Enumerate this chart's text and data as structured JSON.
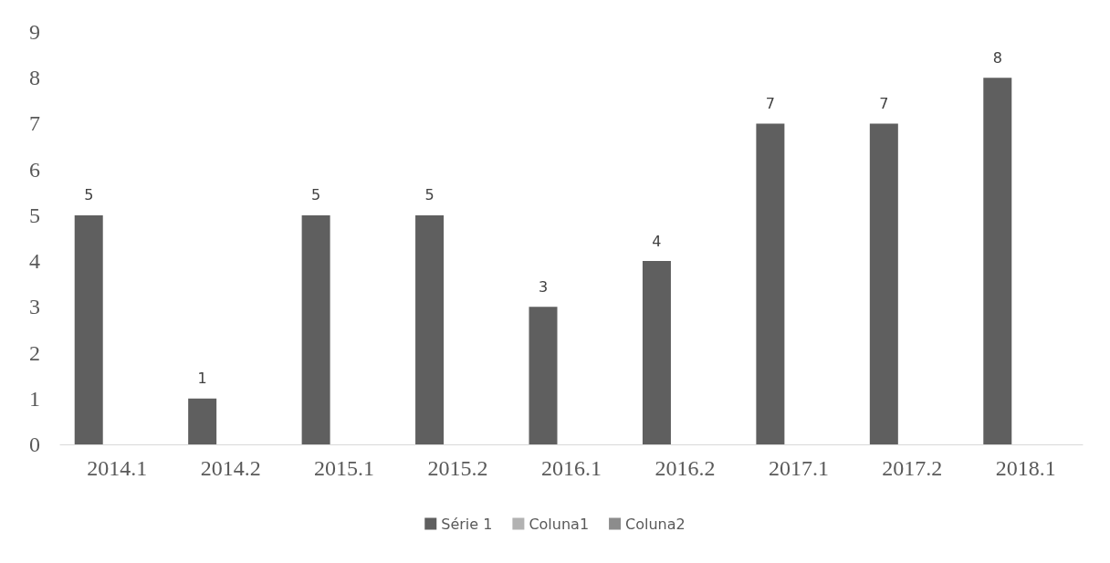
{
  "chart_data": {
    "type": "bar",
    "categories": [
      "2014.1",
      "2014.2",
      "2015.1",
      "2015.2",
      "2016.1",
      "2016.2",
      "2017.1",
      "2017.2",
      "2018.1"
    ],
    "series": [
      {
        "name": "Série 1",
        "color": "#5f5f5f",
        "values": [
          5,
          1,
          5,
          5,
          3,
          4,
          7,
          7,
          8
        ]
      },
      {
        "name": "Coluna1",
        "color": "#b2b2b2",
        "values": [
          null,
          null,
          null,
          null,
          null,
          null,
          null,
          null,
          null
        ]
      },
      {
        "name": "Coluna2",
        "color": "#8c8c8c",
        "values": [
          null,
          null,
          null,
          null,
          null,
          null,
          null,
          null,
          null
        ]
      }
    ],
    "ylim": [
      0,
      9
    ],
    "yticks": [
      0,
      1,
      2,
      3,
      4,
      5,
      6,
      7,
      8,
      9
    ],
    "grid": false,
    "legend": "bottom",
    "data_labels": true
  }
}
